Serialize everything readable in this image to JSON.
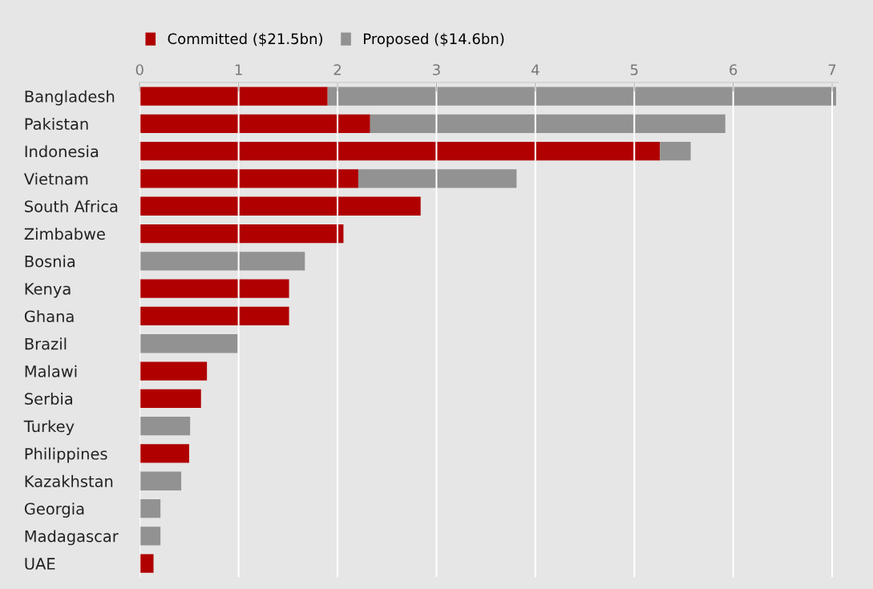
{
  "chart_data": {
    "type": "bar",
    "orientation": "horizontal",
    "stacked": true,
    "categories": [
      "Bangladesh",
      "Pakistan",
      "Indonesia",
      "Vietnam",
      "South Africa",
      "Zimbabwe",
      "Bosnia",
      "Kenya",
      "Ghana",
      "Brazil",
      "Malawi",
      "Serbia",
      "Turkey",
      "Philippines",
      "Kazakhstan",
      "Georgia",
      "Madagascar",
      "UAE"
    ],
    "series": [
      {
        "name": "Committed ($21.5bn)",
        "color": "#b00000",
        "values": [
          1.9,
          2.33,
          5.26,
          2.21,
          2.84,
          2.06,
          null,
          1.51,
          1.51,
          null,
          0.68,
          0.62,
          null,
          0.5,
          null,
          null,
          null,
          0.14
        ]
      },
      {
        "name": "Proposed ($14.6bn)",
        "color": "#929292",
        "values": [
          5.14,
          3.59,
          0.31,
          1.6,
          null,
          null,
          1.67,
          null,
          null,
          0.99,
          null,
          null,
          0.51,
          null,
          0.42,
          0.21,
          0.21,
          null
        ]
      }
    ],
    "xlim": [
      0,
      7.06
    ],
    "xticks": [
      0,
      1,
      2,
      3,
      4,
      5,
      6,
      7
    ],
    "grid": "x",
    "legend": "top left"
  }
}
